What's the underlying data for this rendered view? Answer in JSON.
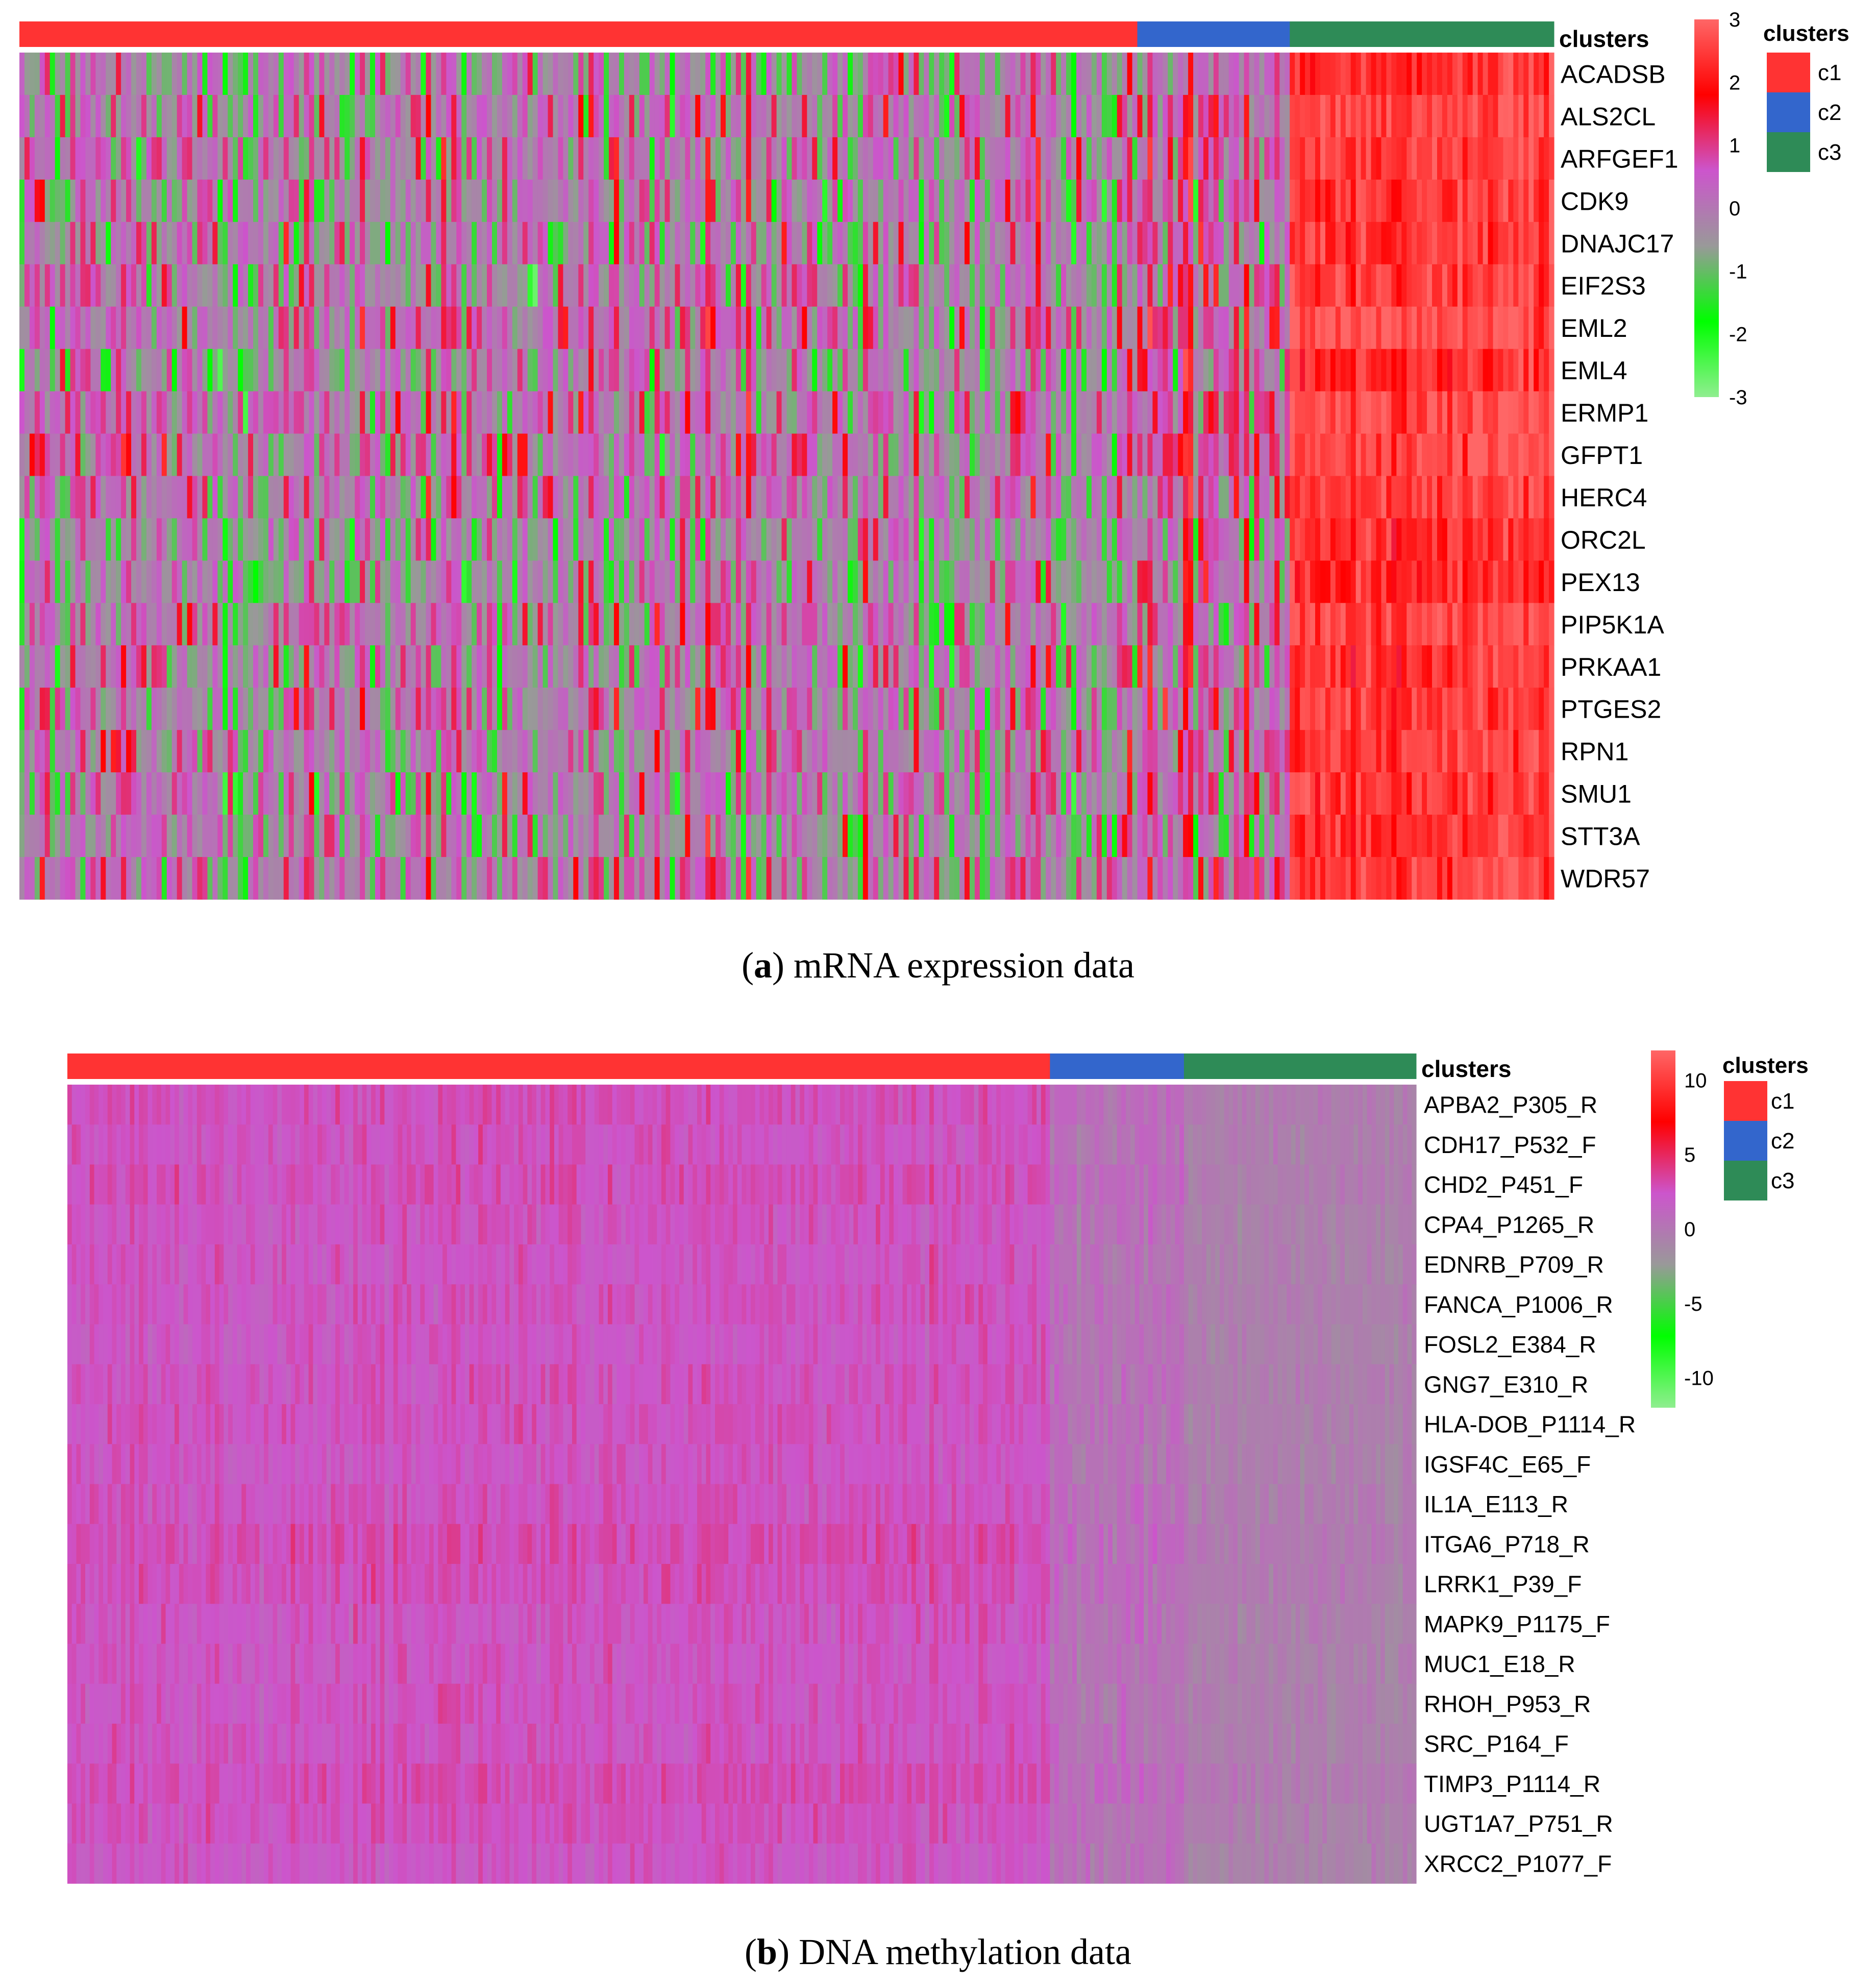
{
  "panels": [
    {
      "id": "a",
      "caption_letter": "a",
      "caption_open": "(",
      "caption_close": ")",
      "caption_text": " mRNA expression data",
      "annotation_label": "clusters",
      "legend_title": "clusters",
      "legend_items": [
        {
          "label": "c1",
          "color": "#FF3333"
        },
        {
          "label": "c2",
          "color": "#3366CC"
        },
        {
          "label": "c3",
          "color": "#2E8B57"
        }
      ]
    },
    {
      "id": "b",
      "caption_letter": "b",
      "caption_open": "(",
      "caption_close": ")",
      "caption_text": " DNA methylation data",
      "annotation_label": "clusters",
      "legend_title": "clusters",
      "legend_items": [
        {
          "label": "c1",
          "color": "#FF3333"
        },
        {
          "label": "c2",
          "color": "#3366CC"
        },
        {
          "label": "c3",
          "color": "#2E8B57"
        }
      ]
    }
  ],
  "chart_data": [
    {
      "type": "heatmap",
      "title": "mRNA expression data",
      "rows": [
        "ACADSB",
        "ALS2CL",
        "ARFGEF1",
        "CDK9",
        "DNAJC17",
        "EIF2S3",
        "EML2",
        "EML4",
        "ERMP1",
        "GFPT1",
        "HERC4",
        "ORC2L",
        "PEX13",
        "PIP5K1A",
        "PRKAA1",
        "PTGES2",
        "RPN1",
        "SMU1",
        "STT3A",
        "WDR57"
      ],
      "column_clusters": [
        {
          "name": "c1",
          "n_columns": 220,
          "color": "#FF3333",
          "typical_value": 0,
          "spread": 1.4
        },
        {
          "name": "c2",
          "n_columns": 30,
          "color": "#3366CC",
          "typical_value": 0.6,
          "spread": 1.4
        },
        {
          "name": "c3",
          "n_columns": 52,
          "color": "#2E8B57",
          "typical_value": 2.6,
          "spread": 0.6
        }
      ],
      "colorscale": {
        "min": -3,
        "max": 3,
        "stops": [
          "#90EE90",
          "#00FF00",
          "#999999",
          "#CC55CC",
          "#FF0000",
          "#FF6666"
        ]
      },
      "colorbar_ticks": [
        "3",
        "2",
        "1",
        "0",
        "-1",
        "-2",
        "-3"
      ]
    },
    {
      "type": "heatmap",
      "title": "DNA methylation data",
      "rows": [
        "APBA2_P305_R",
        "CDH17_P532_F",
        "CHD2_P451_F",
        "CPA4_P1265_R",
        "EDNRB_P709_R",
        "FANCA_P1006_R",
        "FOSL2_E384_R",
        "GNG7_E310_R",
        "HLA-DOB_P1114_R",
        "IGSF4C_E65_F",
        "IL1A_E113_R",
        "ITGA6_P718_R",
        "LRRK1_P39_F",
        "MAPK9_P1175_F",
        "MUC1_E18_R",
        "RHOH_P953_R",
        "SRC_P164_F",
        "TIMP3_P1114_R",
        "UGT1A7_P751_R",
        "XRCC2_P1077_F"
      ],
      "column_clusters": [
        {
          "name": "c1",
          "n_columns": 220,
          "color": "#FF3333",
          "typical_value": 2.5,
          "spread": 0.9
        },
        {
          "name": "c2",
          "n_columns": 30,
          "color": "#3366CC",
          "typical_value": 0.5,
          "spread": 1.2
        },
        {
          "name": "c3",
          "n_columns": 52,
          "color": "#2E8B57",
          "typical_value": -0.5,
          "spread": 0.8
        }
      ],
      "colorscale": {
        "min": -12,
        "max": 12,
        "stops": [
          "#90EE90",
          "#00FF00",
          "#999999",
          "#CC55CC",
          "#FF0000",
          "#FF6666"
        ]
      },
      "colorbar_ticks": [
        "10",
        "5",
        "0",
        "-5",
        "-10"
      ]
    }
  ]
}
